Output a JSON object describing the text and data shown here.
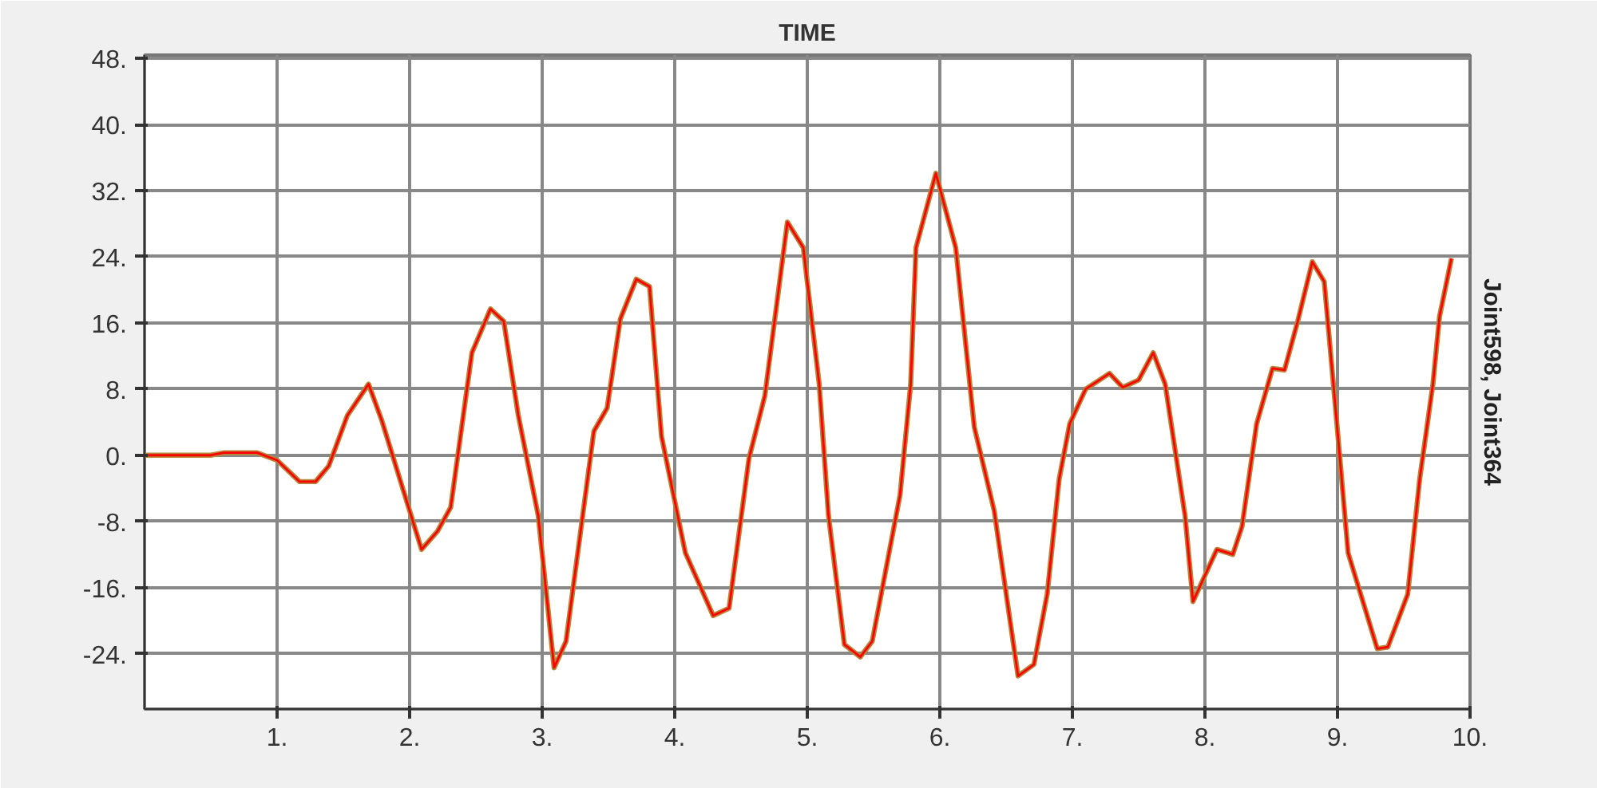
{
  "chart_data": {
    "type": "line",
    "title": "TIME",
    "ylabel": "Joint598, Joint364",
    "x": [
      0,
      0.5,
      0.6,
      0.85,
      1.0,
      1.17,
      1.29,
      1.39,
      1.53,
      1.69,
      1.79,
      2.09,
      2.21,
      2.31,
      2.47,
      2.61,
      2.71,
      2.82,
      2.97,
      3.09,
      3.18,
      3.39,
      3.49,
      3.59,
      3.71,
      3.81,
      3.9,
      4.08,
      4.29,
      4.41,
      4.56,
      4.68,
      4.85,
      4.97,
      5.09,
      5.16,
      5.28,
      5.4,
      5.49,
      5.61,
      5.7,
      5.78,
      5.82,
      5.97,
      6.12,
      6.26,
      6.41,
      6.59,
      6.71,
      6.81,
      6.9,
      6.98,
      7.1,
      7.28,
      7.38,
      7.5,
      7.61,
      7.7,
      7.85,
      7.91,
      8.09,
      8.21,
      8.28,
      8.39,
      8.51,
      8.6,
      8.7,
      8.81,
      8.9,
      8.99,
      9.08,
      9.3,
      9.38,
      9.53,
      9.62,
      9.72,
      9.77,
      9.86
    ],
    "series": [
      {
        "color": "#b8863b",
        "values": [
          0,
          0,
          0.3,
          0.3,
          -0.6,
          -3.2,
          -3.2,
          -1.3,
          4.8,
          8.6,
          4.2,
          -11.4,
          -9.2,
          -6.3,
          12.4,
          17.7,
          16.2,
          4.8,
          -7.3,
          -25.7,
          -22.5,
          2.9,
          5.7,
          16.5,
          21.3,
          20.4,
          2.3,
          -11.8,
          -19.4,
          -18.5,
          -0.4,
          7.2,
          28.2,
          25.1,
          8.6,
          -7.3,
          -22.9,
          -24.4,
          -22.5,
          -12.4,
          -4.8,
          8.6,
          25.1,
          34.1,
          25.1,
          3.4,
          -6.7,
          -26.7,
          -25.3,
          -16.8,
          -2.9,
          3.8,
          8.0,
          9.9,
          8.2,
          9.1,
          12.4,
          8.6,
          -7.3,
          -17.7,
          -11.4,
          -12.0,
          -8.6,
          3.8,
          10.5,
          10.3,
          16.2,
          23.4,
          21.0,
          4.8,
          -11.8,
          -23.4,
          -23.2,
          -16.8,
          -2.9,
          8.6,
          16.8,
          23.8
        ]
      },
      {
        "color": "#ff0000",
        "values": [
          0,
          0,
          0.3,
          0.3,
          -0.6,
          -3.2,
          -3.2,
          -1.3,
          4.8,
          8.6,
          4.2,
          -11.4,
          -9.2,
          -6.3,
          12.4,
          17.7,
          16.2,
          4.8,
          -7.3,
          -25.7,
          -22.5,
          2.9,
          5.7,
          16.5,
          21.3,
          20.4,
          2.3,
          -11.8,
          -19.4,
          -18.5,
          -0.4,
          7.2,
          28.2,
          25.1,
          8.6,
          -7.3,
          -22.9,
          -24.4,
          -22.5,
          -12.4,
          -4.8,
          8.6,
          25.1,
          34.1,
          25.1,
          3.4,
          -6.7,
          -26.7,
          -25.3,
          -16.8,
          -2.9,
          3.8,
          8.0,
          9.9,
          8.2,
          9.1,
          12.4,
          8.6,
          -7.3,
          -17.7,
          -11.4,
          -12.0,
          -8.6,
          3.8,
          10.5,
          10.3,
          16.2,
          23.4,
          21.0,
          4.8,
          -11.8,
          -23.4,
          -23.2,
          -16.8,
          -2.9,
          8.6,
          16.8,
          23.8
        ]
      }
    ],
    "xlim": [
      0,
      10
    ],
    "ylim": [
      -30.7,
      48.4
    ],
    "xticks": [
      {
        "value": 1,
        "label": "1."
      },
      {
        "value": 2,
        "label": "2."
      },
      {
        "value": 3,
        "label": "3."
      },
      {
        "value": 4,
        "label": "4."
      },
      {
        "value": 5,
        "label": "5."
      },
      {
        "value": 6,
        "label": "6."
      },
      {
        "value": 7,
        "label": "7."
      },
      {
        "value": 8,
        "label": "8."
      },
      {
        "value": 9,
        "label": "9."
      },
      {
        "value": 10,
        "label": "10."
      }
    ],
    "yticks": [
      {
        "value": -24,
        "label": "-24."
      },
      {
        "value": -16,
        "label": "-16."
      },
      {
        "value": -8,
        "label": "-8."
      },
      {
        "value": 0,
        "label": "0."
      },
      {
        "value": 8,
        "label": "8."
      },
      {
        "value": 16,
        "label": "16."
      },
      {
        "value": 24,
        "label": "24."
      },
      {
        "value": 32,
        "label": "32."
      },
      {
        "value": 40,
        "label": "40."
      },
      {
        "value": 48,
        "label": "48."
      }
    ],
    "grid": true,
    "marker": "none",
    "line_style": "solid"
  }
}
